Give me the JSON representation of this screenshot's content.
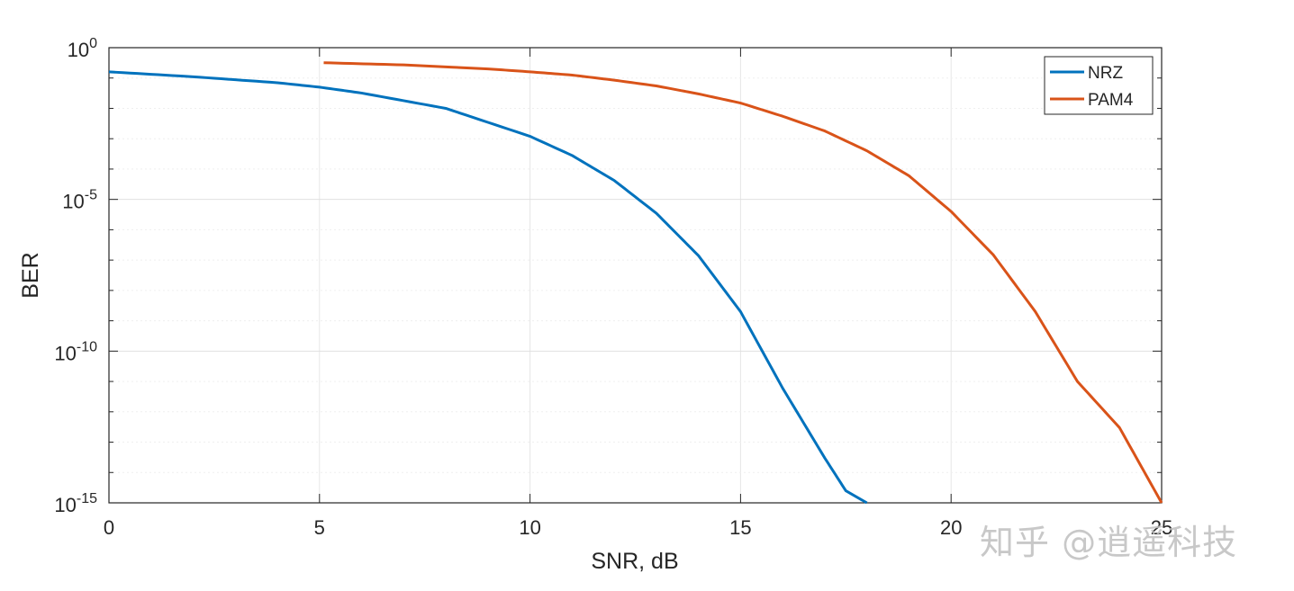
{
  "chart_data": {
    "type": "line",
    "title": "",
    "xlabel": "SNR, dB",
    "ylabel": "BER",
    "xlim": [
      0,
      25
    ],
    "ylim": [
      1e-15,
      1
    ],
    "yscale": "log",
    "grid": true,
    "x_ticks": [
      0,
      5,
      10,
      15,
      20,
      25
    ],
    "x_tick_labels": [
      "0",
      "5",
      "10",
      "15",
      "20",
      "25"
    ],
    "y_ticks": [
      {
        "value": 1,
        "base": "10",
        "exp": "0"
      },
      {
        "value": 1e-05,
        "base": "10",
        "exp": "-5"
      },
      {
        "value": 1e-10,
        "base": "10",
        "exp": "-10"
      },
      {
        "value": 1e-15,
        "base": "10",
        "exp": "-15"
      }
    ],
    "legend_position": "top-right",
    "series": [
      {
        "name": "NRZ",
        "color": "#0072BD",
        "x": [
          0,
          2,
          4,
          5,
          6,
          8,
          10,
          11,
          12,
          13,
          14,
          15,
          16,
          17,
          17.5,
          18
        ],
        "y": [
          0.16,
          0.11,
          0.07,
          0.05,
          0.032,
          0.01,
          0.0012,
          0.00028,
          4.2e-05,
          3.5e-06,
          1.4e-07,
          2e-09,
          6e-12,
          3e-14,
          2.5e-15,
          1e-15
        ]
      },
      {
        "name": "PAM4",
        "color": "#D95319",
        "x": [
          5.1,
          7,
          9,
          10,
          11,
          12,
          13,
          14,
          15,
          16,
          17,
          18,
          19,
          20,
          21,
          22,
          23,
          24,
          25
        ],
        "y": [
          0.32,
          0.27,
          0.2,
          0.16,
          0.125,
          0.085,
          0.055,
          0.03,
          0.015,
          0.0055,
          0.0018,
          0.0004,
          6e-05,
          4e-06,
          1.5e-07,
          2e-09,
          1e-11,
          3e-13,
          1e-15
        ]
      }
    ]
  },
  "watermark": "知乎 @逍遥科技"
}
